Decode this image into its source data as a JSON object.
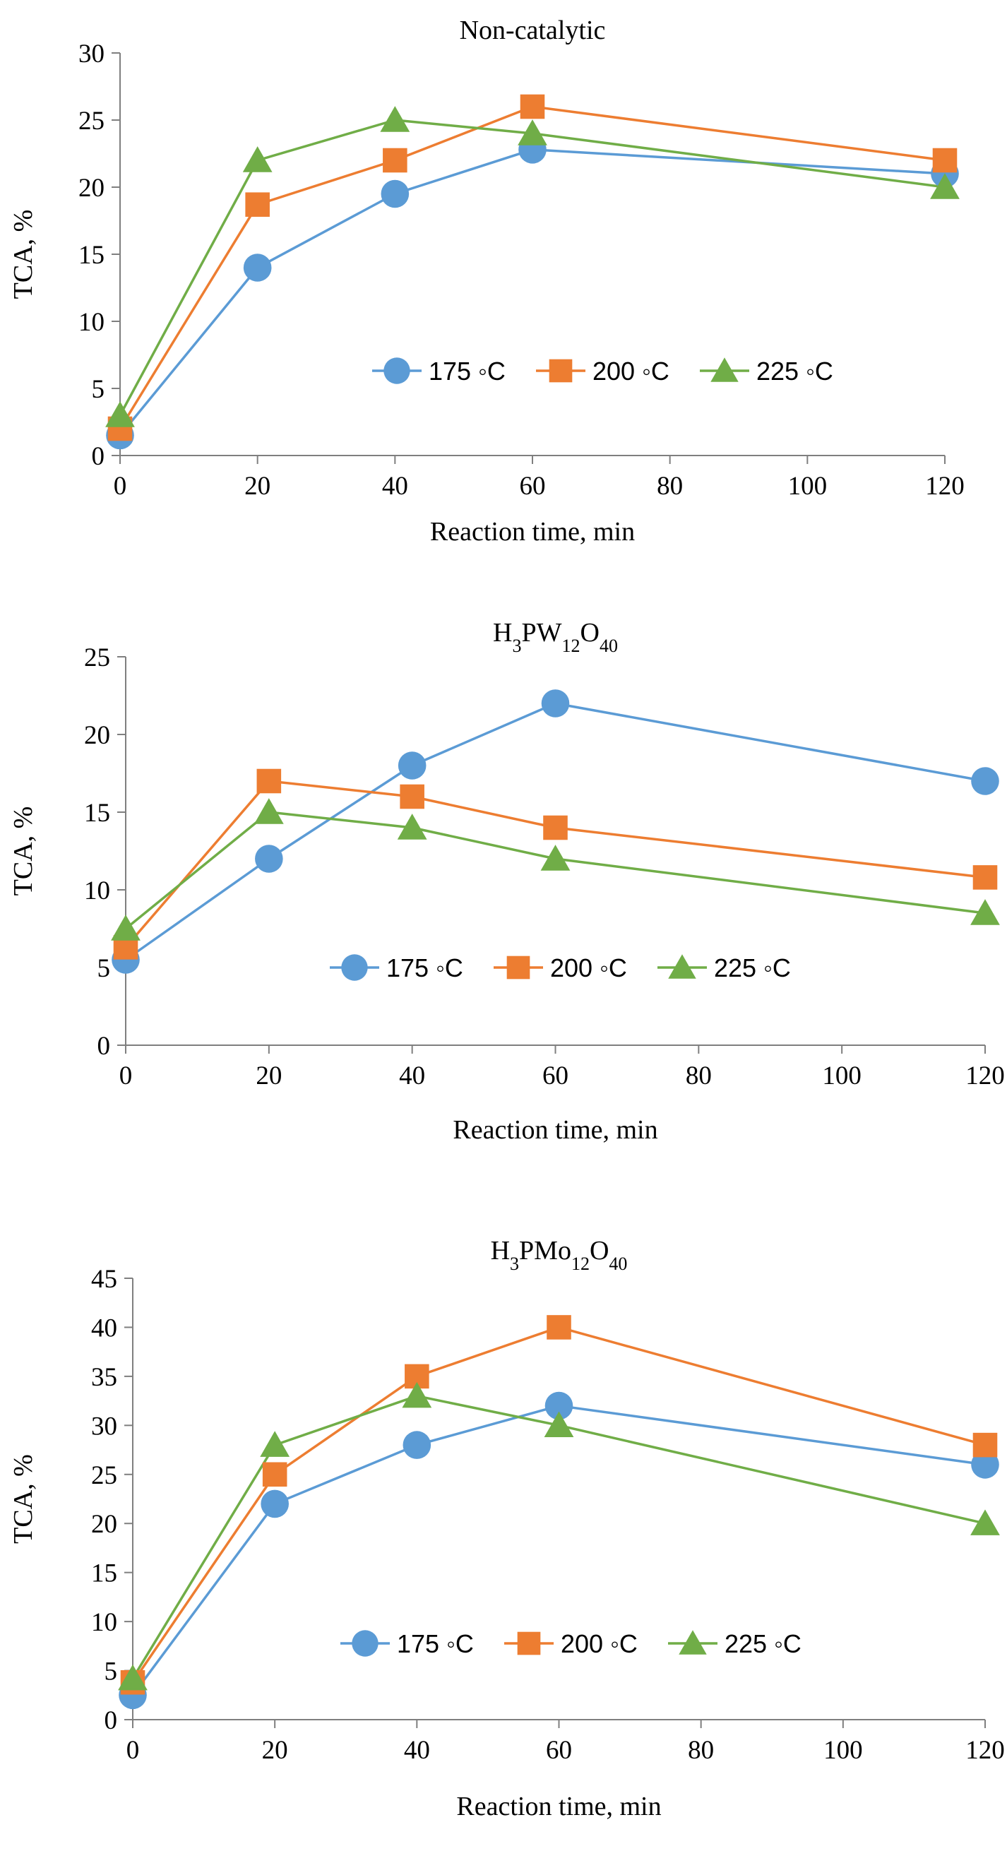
{
  "chart_data": [
    {
      "type": "line",
      "title": "Non-catalytic",
      "xlabel": "Reaction time, min",
      "ylabel": "TCA, %",
      "x": [
        0,
        20,
        40,
        60,
        120
      ],
      "xticks": [
        0,
        20,
        40,
        60,
        80,
        100,
        120
      ],
      "yticks": [
        0,
        5,
        10,
        15,
        20,
        25,
        30
      ],
      "xlim": [
        0,
        120
      ],
      "ylim": [
        0,
        30
      ],
      "grid": false,
      "legend": "inside-bottom-right",
      "series": [
        {
          "name": "175 ◦C",
          "color": "#5b9bd5",
          "marker": "circle",
          "values": [
            1.5,
            14,
            19.5,
            22.8,
            21
          ]
        },
        {
          "name": "200 ◦C",
          "color": "#ed7d31",
          "marker": "square",
          "values": [
            2,
            18.7,
            22,
            26,
            22
          ]
        },
        {
          "name": "225 ◦C",
          "color": "#70ad47",
          "marker": "triangle",
          "values": [
            3,
            22,
            25,
            24,
            20
          ]
        }
      ]
    },
    {
      "type": "line",
      "title": "H3PW12O40",
      "title_parts": [
        {
          "t": "H",
          "sub": false
        },
        {
          "t": "3",
          "sub": true
        },
        {
          "t": "PW",
          "sub": false
        },
        {
          "t": "12",
          "sub": true
        },
        {
          "t": "O",
          "sub": false
        },
        {
          "t": "40",
          "sub": true
        }
      ],
      "xlabel": "Reaction time, min",
      "ylabel": "TCA, %",
      "x": [
        0,
        20,
        40,
        60,
        120
      ],
      "xticks": [
        0,
        20,
        40,
        60,
        80,
        100,
        120
      ],
      "yticks": [
        0,
        5,
        10,
        15,
        20,
        25
      ],
      "xlim": [
        0,
        120
      ],
      "ylim": [
        0,
        25
      ],
      "grid": false,
      "legend": "inside-bottom-center",
      "series": [
        {
          "name": "175 ◦C",
          "color": "#5b9bd5",
          "marker": "circle",
          "values": [
            5.5,
            12,
            18,
            22,
            17
          ]
        },
        {
          "name": "200 ◦C",
          "color": "#ed7d31",
          "marker": "square",
          "values": [
            6.3,
            17,
            16,
            14,
            10.8
          ]
        },
        {
          "name": "225 ◦C",
          "color": "#70ad47",
          "marker": "triangle",
          "values": [
            7.5,
            15,
            14,
            12,
            8.5
          ]
        }
      ]
    },
    {
      "type": "line",
      "title": "H3PMo12O40",
      "title_parts": [
        {
          "t": "H",
          "sub": false
        },
        {
          "t": "3",
          "sub": true
        },
        {
          "t": "PMo",
          "sub": false
        },
        {
          "t": "12",
          "sub": true
        },
        {
          "t": "O",
          "sub": false
        },
        {
          "t": "40",
          "sub": true
        }
      ],
      "xlabel": "Reaction time, min",
      "ylabel": "TCA, %",
      "x": [
        0,
        20,
        40,
        60,
        120
      ],
      "xticks": [
        0,
        20,
        40,
        60,
        80,
        100,
        120
      ],
      "yticks": [
        0,
        5,
        10,
        15,
        20,
        25,
        30,
        35,
        40,
        45
      ],
      "xlim": [
        0,
        120
      ],
      "ylim": [
        0,
        45
      ],
      "grid": false,
      "legend": "inside-bottom-center",
      "series": [
        {
          "name": "175 ◦C",
          "color": "#5b9bd5",
          "marker": "circle",
          "values": [
            2.5,
            22,
            28,
            32,
            26
          ]
        },
        {
          "name": "200 ◦C",
          "color": "#ed7d31",
          "marker": "square",
          "values": [
            3.8,
            25,
            35,
            40,
            28
          ]
        },
        {
          "name": "225 ◦C",
          "color": "#70ad47",
          "marker": "triangle",
          "values": [
            4.2,
            28,
            33,
            30,
            20
          ]
        }
      ]
    }
  ]
}
